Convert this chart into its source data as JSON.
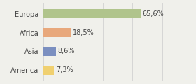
{
  "categories": [
    "Europa",
    "Africa",
    "Asia",
    "America"
  ],
  "values": [
    65.6,
    18.5,
    8.6,
    7.3
  ],
  "labels": [
    "65,6%",
    "18,5%",
    "8,6%",
    "7,3%"
  ],
  "bar_colors": [
    "#b0c48c",
    "#e8a87c",
    "#7b8fc0",
    "#f0d070"
  ],
  "background_color": "#f0f0eb",
  "xlim": [
    0,
    100
  ],
  "bar_height": 0.5,
  "label_fontsize": 7.0,
  "tick_fontsize": 7.0
}
